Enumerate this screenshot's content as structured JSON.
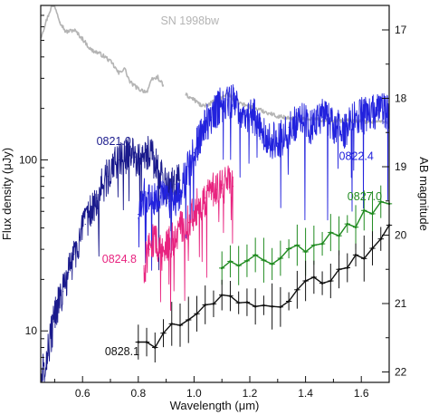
{
  "chart_data": {
    "type": "line",
    "title": "",
    "xlabel": "Wavelength (μm)",
    "ylabel": "Flux density (μJy)",
    "y2label": "AB magnitude",
    "xlim": [
      0.45,
      1.7
    ],
    "ylim": [
      5,
      800
    ],
    "y_scale": "log",
    "grid": false,
    "legend": "none (series labelled directly on the plot)",
    "x_ticks": [
      0.6,
      0.8,
      1.0,
      1.2,
      1.4,
      1.6
    ],
    "y_ticks": [
      10,
      100
    ],
    "y_tick_labels": [
      "10",
      "100"
    ],
    "y2_ticks": [
      17,
      18,
      19,
      20,
      21,
      22
    ],
    "series": [
      {
        "name": "SN 1998bw",
        "color": "#b4b4b4",
        "style": "spectrum",
        "x": [
          0.45,
          0.47,
          0.49,
          0.5,
          0.52,
          0.54,
          0.57,
          0.6,
          0.63,
          0.66,
          0.69,
          0.71,
          0.73,
          0.75,
          0.77,
          0.8,
          0.83,
          0.85,
          0.87,
          0.89
        ],
        "y": [
          520,
          650,
          800,
          800,
          640,
          560,
          575,
          510,
          440,
          420,
          390,
          360,
          320,
          345,
          285,
          260,
          250,
          295,
          305,
          270
        ]
      },
      {
        "name": "SN 1998bw",
        "color": "#b4b4b4",
        "style": "spectrum",
        "x": [
          0.97,
          1.0,
          1.03,
          1.06,
          1.09,
          1.12,
          1.15,
          1.18,
          1.22,
          1.26,
          1.3,
          1.35,
          1.4,
          1.45,
          1.5,
          1.55,
          1.6,
          1.65,
          1.7
        ],
        "y": [
          240,
          225,
          205,
          215,
          225,
          245,
          220,
          210,
          200,
          190,
          180,
          175,
          175,
          172,
          170,
          170,
          168,
          168,
          166
        ]
      },
      {
        "name": "0821.0",
        "color": "#1a1a8c",
        "style": "noisy",
        "x": [
          0.45,
          0.47,
          0.49,
          0.51,
          0.53,
          0.55,
          0.57,
          0.59,
          0.61,
          0.63,
          0.65,
          0.67,
          0.69,
          0.71,
          0.73,
          0.75,
          0.77,
          0.79,
          0.81,
          0.83,
          0.85,
          0.87,
          0.89,
          0.91,
          0.93,
          0.95
        ],
        "y": [
          5,
          7,
          10,
          14,
          17,
          22,
          28,
          34,
          42,
          50,
          60,
          70,
          80,
          92,
          100,
          104,
          106,
          104,
          94,
          110,
          102,
          88,
          74,
          68,
          72,
          76
        ]
      },
      {
        "name": "0822.4",
        "color": "#2222dd",
        "style": "noisy",
        "x": [
          0.8,
          0.82,
          0.85,
          0.88,
          0.91,
          0.94,
          0.97,
          1.0,
          1.03,
          1.06,
          1.09,
          1.12,
          1.15,
          1.18,
          1.22,
          1.26,
          1.3,
          1.34,
          1.38,
          1.42,
          1.46,
          1.5,
          1.54,
          1.58,
          1.62,
          1.66,
          1.7
        ],
        "y": [
          48,
          62,
          60,
          64,
          57,
          60,
          80,
          110,
          148,
          178,
          205,
          225,
          210,
          190,
          178,
          138,
          125,
          155,
          175,
          150,
          178,
          160,
          145,
          185,
          180,
          195,
          185
        ]
      },
      {
        "name": "0824.8",
        "color": "#e8237f",
        "style": "noisy",
        "x": [
          0.82,
          0.84,
          0.86,
          0.88,
          0.9,
          0.92,
          0.94,
          0.96,
          0.98,
          1.0,
          1.02,
          1.04,
          1.06,
          1.08,
          1.1,
          1.12,
          1.14
        ],
        "y": [
          24,
          30,
          36,
          28,
          32,
          34,
          38,
          40,
          43,
          50,
          56,
          60,
          64,
          67,
          68,
          72,
          70
        ]
      },
      {
        "name": "0827.0",
        "color": "#1f8a1f",
        "style": "errorbar",
        "x": [
          1.1,
          1.13,
          1.16,
          1.19,
          1.22,
          1.25,
          1.28,
          1.31,
          1.34,
          1.37,
          1.4,
          1.43,
          1.46,
          1.49,
          1.52,
          1.55,
          1.58,
          1.61,
          1.64,
          1.67,
          1.7
        ],
        "y": [
          23.3,
          25.5,
          24.1,
          25.7,
          27.8,
          25.9,
          24.6,
          26.6,
          30.2,
          31.7,
          29.0,
          31.7,
          32.3,
          37.6,
          36.0,
          42.2,
          40.4,
          50.6,
          48.4,
          56.9,
          55.4
        ]
      },
      {
        "name": "0828.1",
        "color": "#111111",
        "style": "errorbar",
        "x": [
          0.8,
          0.83,
          0.86,
          0.89,
          0.92,
          0.95,
          0.98,
          1.01,
          1.04,
          1.07,
          1.1,
          1.13,
          1.16,
          1.19,
          1.22,
          1.25,
          1.28,
          1.31,
          1.34,
          1.37,
          1.4,
          1.43,
          1.46,
          1.49,
          1.52,
          1.55,
          1.58,
          1.61,
          1.64,
          1.67,
          1.7
        ],
        "y": [
          8.6,
          8.6,
          8.0,
          9.7,
          11.0,
          10.8,
          11.6,
          12.6,
          14.2,
          14.4,
          16.2,
          16.0,
          14.6,
          14.7,
          13.9,
          14.1,
          13.9,
          13.8,
          14.9,
          17.4,
          19.6,
          20.6,
          19.0,
          19.6,
          22.9,
          23.4,
          27.8,
          26.5,
          30.4,
          34.5,
          41.5
        ]
      }
    ],
    "annotations": [
      {
        "text": "SN 1998bw",
        "color": "#b4b4b4",
        "x": 0.88,
        "y": 620
      },
      {
        "text": "0821.0",
        "color": "#1a1a8c",
        "x": 0.65,
        "y": 122
      },
      {
        "text": "0822.4",
        "color": "#2222dd",
        "x": 1.52,
        "y": 100
      },
      {
        "text": "0824.8",
        "color": "#e8237f",
        "x": 0.67,
        "y": 25
      },
      {
        "text": "0827.0",
        "color": "#1f8a1f",
        "x": 1.55,
        "y": 58
      },
      {
        "text": "0828.1",
        "color": "#111111",
        "x": 0.68,
        "y": 7.2
      }
    ]
  }
}
